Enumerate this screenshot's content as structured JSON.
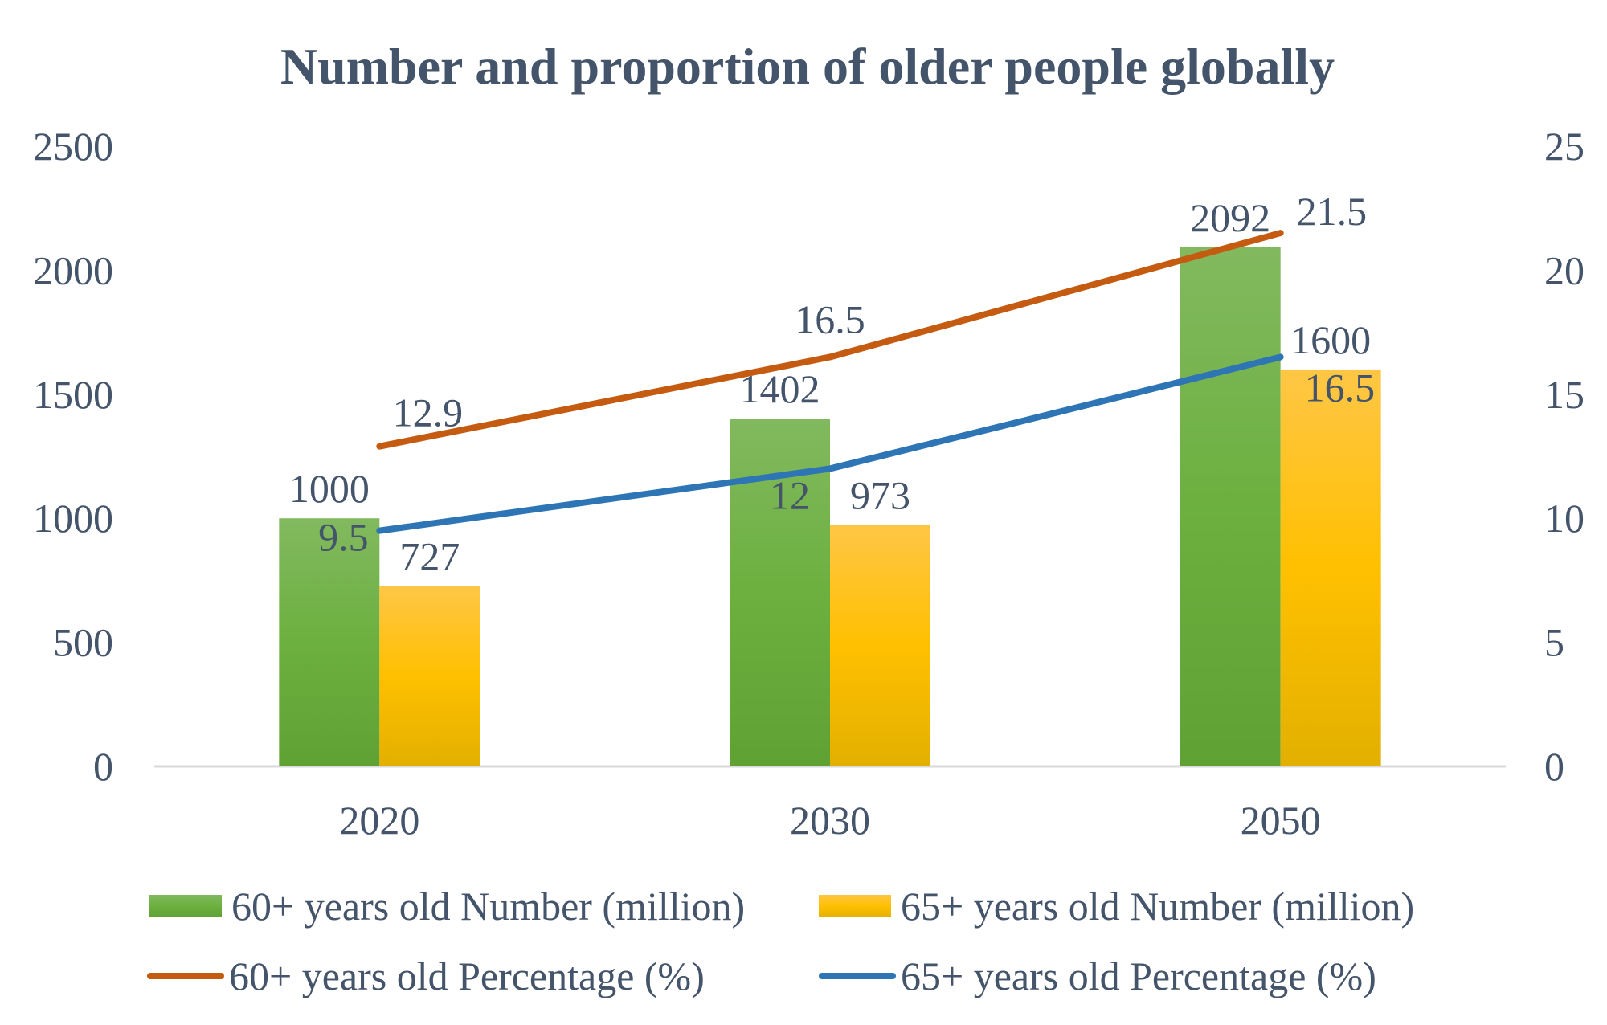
{
  "chart_data": {
    "type": "bar",
    "title": "Number and proportion of older people globally",
    "categories": [
      "2020",
      "2030",
      "2050"
    ],
    "y_left": {
      "ylim": [
        0,
        2500
      ],
      "ticks": [
        "0",
        "500",
        "1000",
        "1500",
        "2000",
        "2500"
      ]
    },
    "y_right": {
      "ylim": [
        0,
        25
      ],
      "ticks": [
        "0",
        "5",
        "10",
        "15",
        "20",
        "25"
      ]
    },
    "grid": false,
    "legend_placement": "bottom",
    "series": [
      {
        "name": "60+ years old Number (million)",
        "kind": "bar",
        "axis": "left",
        "values": [
          1000,
          1402,
          2092
        ],
        "labels": [
          "1000",
          "1402",
          "2092"
        ],
        "color": "#70ad47"
      },
      {
        "name": "65+ years old Number (million)",
        "kind": "bar",
        "axis": "left",
        "values": [
          727,
          973,
          1600
        ],
        "labels": [
          "727",
          "973",
          "1600"
        ],
        "color": "#ffc000"
      },
      {
        "name": "60+ years old Percentage (%)",
        "kind": "line",
        "axis": "right",
        "values": [
          12.9,
          16.5,
          21.5
        ],
        "labels": [
          "12.9",
          "16.5",
          "21.5"
        ],
        "color": "#c55a11"
      },
      {
        "name": "65+ years old Percentage (%)",
        "kind": "line",
        "axis": "right",
        "values": [
          9.5,
          12,
          16.5
        ],
        "labels": [
          "9.5",
          "12",
          "16.5"
        ],
        "color": "#2e75b6"
      }
    ],
    "text_color": "#44546a"
  }
}
